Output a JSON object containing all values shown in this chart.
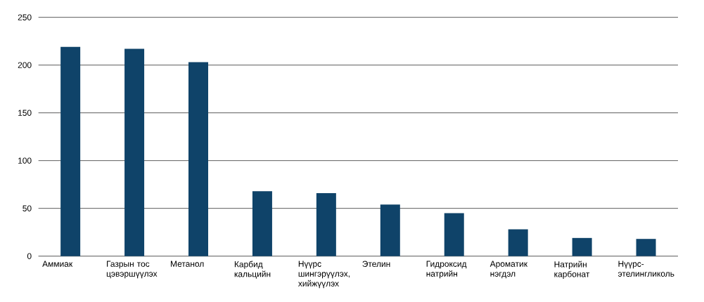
{
  "chart_data": {
    "type": "bar",
    "categories": [
      "Аммиак",
      "Газрын тос цэвэршүүлэх",
      "Метанол",
      "Карбид кальцийн",
      "Нүүрс шингэрүүлэх, хийжүүлэх",
      "Этелин",
      "Гидроксид натрийн",
      "Ароматик нэгдэл",
      "Натрийн карбонат",
      "Нүүрс-этелингликоль"
    ],
    "values": [
      219,
      217,
      203,
      68,
      66,
      54,
      45,
      28,
      19,
      18
    ],
    "color": "#0f4369",
    "ylim": [
      0,
      250
    ],
    "yticks": [
      0,
      50,
      100,
      150,
      200,
      250
    ],
    "grid": "y"
  }
}
